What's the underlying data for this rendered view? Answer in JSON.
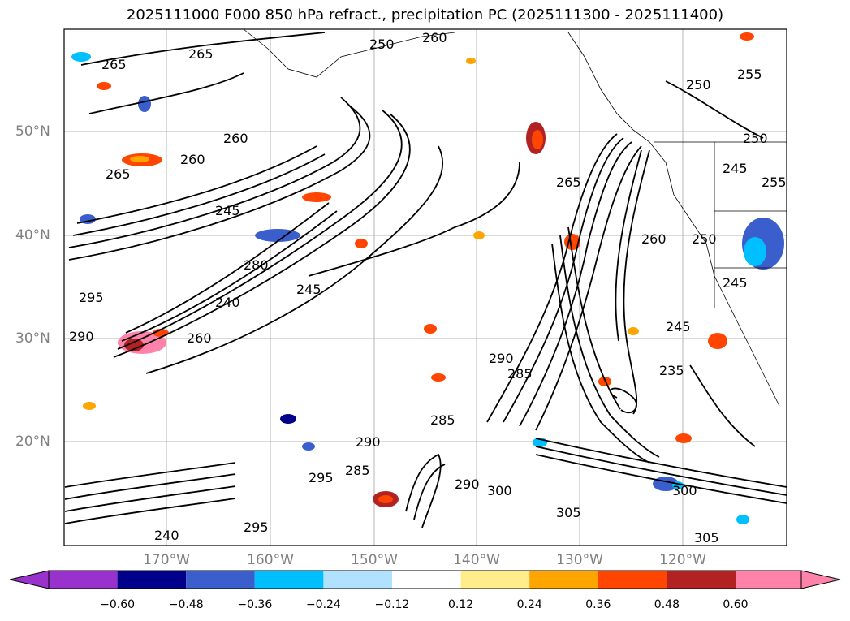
{
  "title": "2025111000 F000 850 hPa refract., precipitation PC (2025111300 - 2025111400)",
  "map": {
    "lat_labels": [
      "50°N",
      "40°N",
      "30°N",
      "20°N"
    ],
    "lon_labels": [
      "170°W",
      "160°W",
      "150°W",
      "140°W",
      "130°W",
      "120°W"
    ],
    "contour_labels": [
      "265",
      "250",
      "260",
      "255",
      "260",
      "265",
      "260",
      "245",
      "250",
      "245",
      "265",
      "280",
      "295",
      "290",
      "240",
      "250",
      "245",
      "260",
      "285",
      "290",
      "285",
      "290",
      "295",
      "290",
      "295",
      "285",
      "300",
      "305",
      "300",
      "305",
      "235",
      "245",
      "255",
      "260",
      "265",
      "250",
      "245",
      "240"
    ]
  },
  "colorbar": {
    "ticks": [
      "−0.60",
      "−0.48",
      "−0.36",
      "−0.24",
      "−0.12",
      "0.12",
      "0.24",
      "0.36",
      "0.48",
      "0.60"
    ],
    "colors": [
      "#9932cc",
      "#00008b",
      "#3a5fcd",
      "#00bfff",
      "#b0e2ff",
      "#ffffff",
      "#ffec8b",
      "#ffa500",
      "#ff4500",
      "#b22222",
      "#ff82ab"
    ]
  }
}
